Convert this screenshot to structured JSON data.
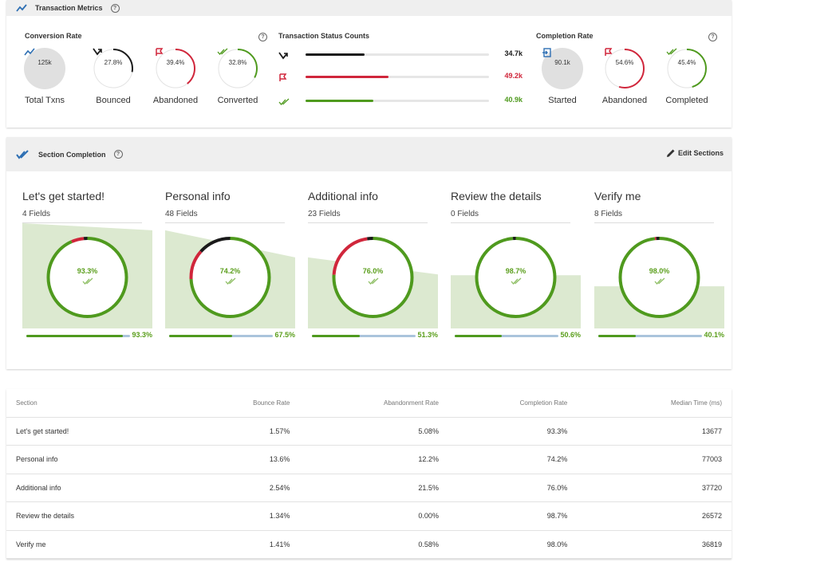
{
  "transaction_metrics": {
    "title": "Transaction Metrics",
    "conversion_rate": {
      "title": "Conversion Rate",
      "items": [
        {
          "value": "125k",
          "label": "Total Txns",
          "icon": "trend-icon"
        },
        {
          "value": "27.8%",
          "label": "Bounced",
          "icon": "bounce-icon",
          "fraction": 0.278,
          "color": "#1a1a1a"
        },
        {
          "value": "39.4%",
          "label": "Abandoned",
          "icon": "flag-icon",
          "fraction": 0.394,
          "color": "#d0263b"
        },
        {
          "value": "32.8%",
          "label": "Converted",
          "icon": "double-check-icon",
          "fraction": 0.328,
          "color": "#4f9a1e"
        }
      ]
    },
    "status_counts": {
      "title": "Transaction Status Counts",
      "bars": [
        {
          "value": "34.7k",
          "fraction": 0.32,
          "color": "#1a1a1a",
          "icon": "bounce-icon"
        },
        {
          "value": "49.2k",
          "fraction": 0.45,
          "color": "#d0263b",
          "icon": "flag-icon"
        },
        {
          "value": "40.9k",
          "fraction": 0.37,
          "color": "#4f9a1e",
          "icon": "double-check-icon"
        }
      ]
    },
    "completion_rate": {
      "title": "Completion Rate",
      "items": [
        {
          "value": "90.1k",
          "label": "Started",
          "icon": "enter-icon"
        },
        {
          "value": "54.6%",
          "label": "Abandoned",
          "icon": "flag-icon",
          "fraction": 0.546,
          "color": "#d0263b"
        },
        {
          "value": "45.4%",
          "label": "Completed",
          "icon": "double-check-icon",
          "fraction": 0.454,
          "color": "#4f9a1e"
        }
      ]
    }
  },
  "section_completion": {
    "title": "Section Completion",
    "edit_label": "Edit Sections",
    "sections": [
      {
        "name": "Let's get started!",
        "fields": "4 Fields",
        "rate": "93.3%",
        "completion": 0.933,
        "bounce": 0.0157,
        "abandon": 0.0508,
        "progress": "93.3%",
        "progress_fraction": 0.933,
        "area_start": 1.0,
        "area_end": 0.933
      },
      {
        "name": "Personal info",
        "fields": "48 Fields",
        "rate": "74.2%",
        "completion": 0.742,
        "bounce": 0.136,
        "abandon": 0.122,
        "progress": "67.5%",
        "progress_fraction": 0.675,
        "area_start": 0.933,
        "area_end": 0.675
      },
      {
        "name": "Additional info",
        "fields": "23 Fields",
        "rate": "76.0%",
        "completion": 0.76,
        "bounce": 0.0254,
        "abandon": 0.215,
        "progress": "51.3%",
        "progress_fraction": 0.513,
        "area_start": 0.675,
        "area_end": 0.513
      },
      {
        "name": "Review the details",
        "fields": "0 Fields",
        "rate": "98.7%",
        "completion": 0.987,
        "bounce": 0.0134,
        "abandon": 0.0,
        "progress": "50.6%",
        "progress_fraction": 0.506,
        "area_start": 0.506,
        "area_end": 0.506
      },
      {
        "name": "Verify me",
        "fields": "8 Fields",
        "rate": "98.0%",
        "completion": 0.98,
        "bounce": 0.0141,
        "abandon": 0.0058,
        "progress": "40.1%",
        "progress_fraction": 0.401,
        "area_start": 0.401,
        "area_end": 0.401
      }
    ]
  },
  "table": {
    "headers": [
      "Section",
      "Bounce Rate",
      "Abandonment Rate",
      "Completion Rate",
      "Median Time (ms)"
    ],
    "rows": [
      [
        "Let's get started!",
        "1.57%",
        "5.08%",
        "93.3%",
        "13677"
      ],
      [
        "Personal info",
        "13.6%",
        "12.2%",
        "74.2%",
        "77003"
      ],
      [
        "Additional info",
        "2.54%",
        "21.5%",
        "76.0%",
        "37720"
      ],
      [
        "Review the details",
        "1.34%",
        "0.00%",
        "98.7%",
        "26572"
      ],
      [
        "Verify me",
        "1.41%",
        "0.58%",
        "98.0%",
        "36819"
      ]
    ]
  },
  "colors": {
    "green": "#4f9a1e",
    "red": "#d0263b",
    "black": "#1a1a1a",
    "blue": "#2e6fb3",
    "area": "#dce9d0",
    "track": "#aac4dc"
  }
}
